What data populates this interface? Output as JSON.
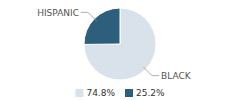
{
  "chart_data": {
    "type": "pie",
    "categories": [
      "BLACK",
      "HISPANIC"
    ],
    "values": [
      74.8,
      25.2
    ],
    "value_labels": [
      "74.8%",
      "25.2%"
    ],
    "colors": [
      "#d9e2ea",
      "#2d5f7c"
    ],
    "legend": "bottom"
  }
}
